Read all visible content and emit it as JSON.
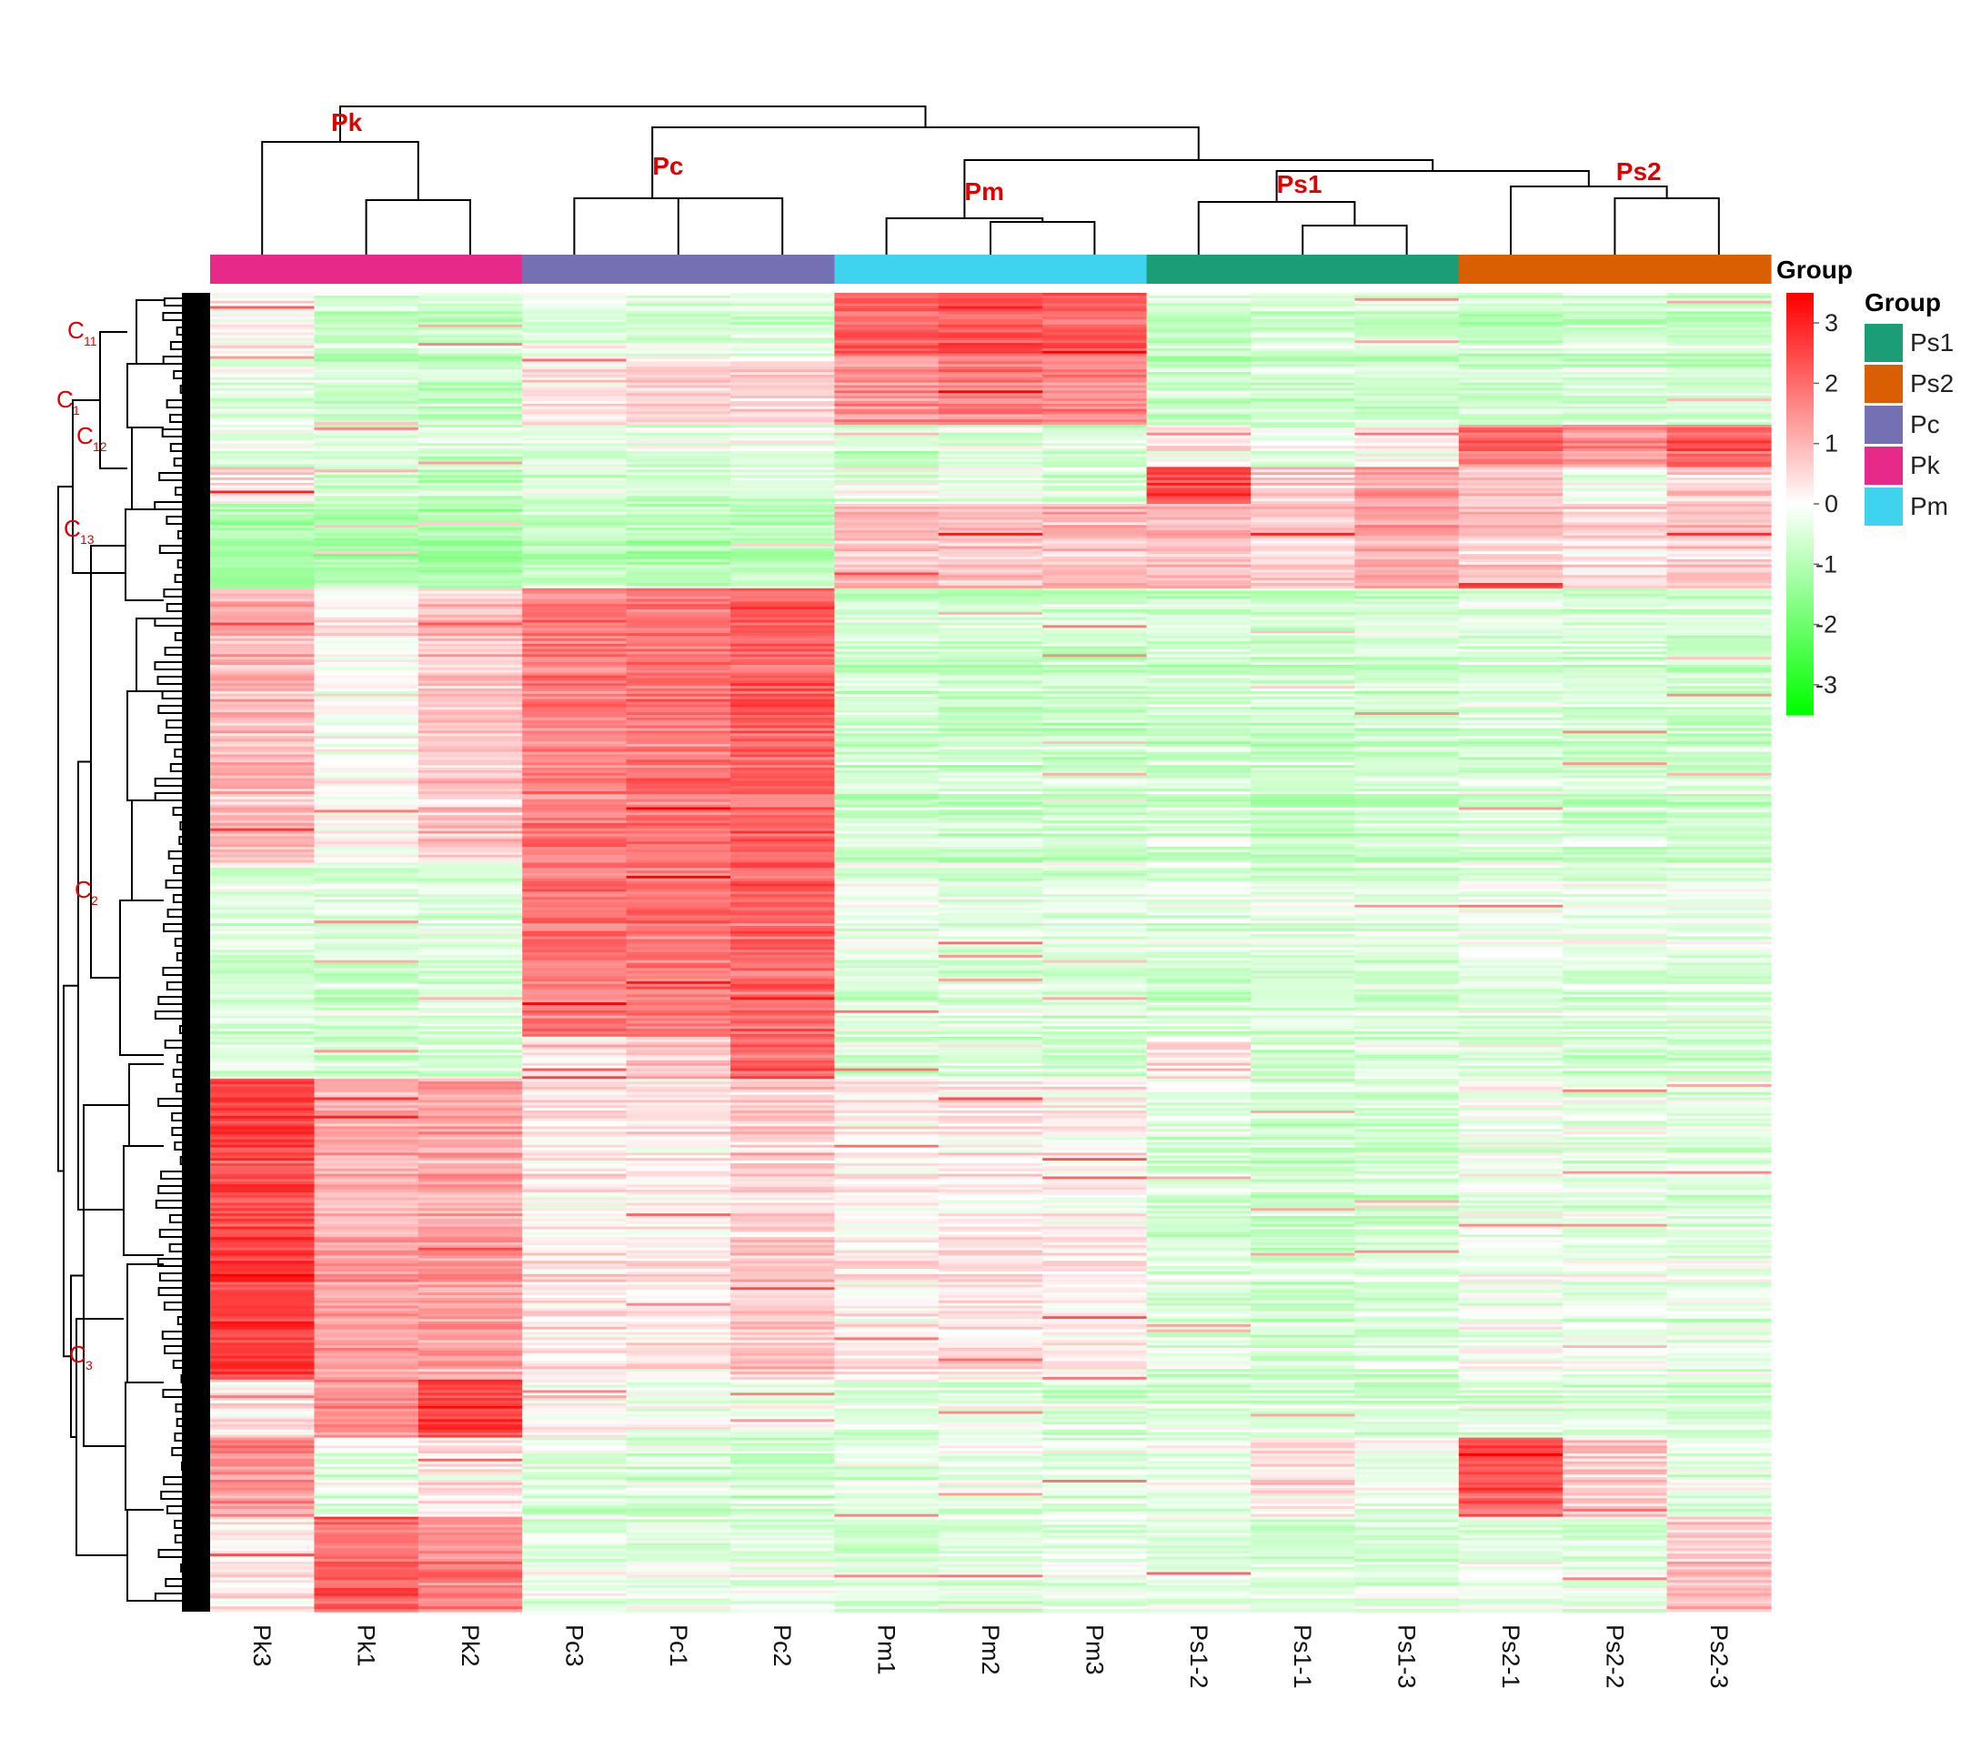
{
  "chart_data": {
    "type": "heatmap",
    "title": "",
    "column_annotation_title": "Group",
    "legend_title": "Group",
    "samples": [
      "Pk3",
      "Pk1",
      "Pk2",
      "Pc3",
      "Pc1",
      "Pc2",
      "Pm1",
      "Pm2",
      "Pm3",
      "Ps1-2",
      "Ps1-1",
      "Ps1-3",
      "Ps2-1",
      "Ps2-2",
      "Ps2-3"
    ],
    "sample_groups": [
      "Pk",
      "Pk",
      "Pk",
      "Pc",
      "Pc",
      "Pc",
      "Pm",
      "Pm",
      "Pm",
      "Ps1",
      "Ps1",
      "Ps1",
      "Ps2",
      "Ps2",
      "Ps2"
    ],
    "groups": [
      {
        "name": "Ps1",
        "color": "#1b9e77"
      },
      {
        "name": "Ps2",
        "color": "#d95f02"
      },
      {
        "name": "Pc",
        "color": "#7570b3"
      },
      {
        "name": "Pk",
        "color": "#e7298a"
      },
      {
        "name": "Pm",
        "color": "#3fd3f0"
      }
    ],
    "dendrogram_labels": [
      "Pk",
      "Pc",
      "Pm",
      "Ps1",
      "Ps2"
    ],
    "row_cluster_labels": [
      {
        "main": "C",
        "sub": "11"
      },
      {
        "main": "C",
        "sub": "1"
      },
      {
        "main": "C",
        "sub": "12"
      },
      {
        "main": "C",
        "sub": "13"
      },
      {
        "main": "C",
        "sub": "2"
      },
      {
        "main": "C",
        "sub": "3"
      }
    ],
    "color_scale": {
      "low": "#00ff00",
      "mid": "#ffffff",
      "high": "#ff0000",
      "min": -3.5,
      "max": 3.5
    },
    "colorbar_ticks": [
      3,
      2,
      1,
      0,
      -1,
      -2,
      -3
    ],
    "row_blocks": [
      {
        "n": 24,
        "values": [
          0.2,
          -0.6,
          -0.6,
          -0.3,
          -0.5,
          -0.4,
          2.2,
          2.4,
          2.3,
          -0.6,
          -0.5,
          -0.5,
          -0.7,
          -0.6,
          -0.7
        ]
      },
      {
        "n": 26,
        "values": [
          -0.3,
          -0.6,
          -0.7,
          0.4,
          0.6,
          0.7,
          1.6,
          1.8,
          1.7,
          -0.7,
          -0.6,
          -0.6,
          -0.6,
          -0.5,
          -0.6
        ]
      },
      {
        "n": 16,
        "values": [
          -0.4,
          -0.5,
          -0.6,
          -0.4,
          -0.4,
          -0.3,
          -0.6,
          -0.5,
          -0.6,
          0.3,
          -0.3,
          0.2,
          1.9,
          1.5,
          2.3
        ]
      },
      {
        "n": 14,
        "values": [
          0.6,
          -0.7,
          -0.8,
          -0.4,
          -0.6,
          -0.5,
          -0.2,
          -0.2,
          -0.4,
          2.6,
          0.7,
          1.3,
          0.8,
          -0.2,
          0.6
        ]
      },
      {
        "n": 32,
        "values": [
          -1.2,
          -1.1,
          -1.3,
          -0.8,
          -1.0,
          -0.9,
          0.9,
          0.8,
          0.9,
          0.9,
          0.7,
          1.2,
          0.8,
          0.5,
          0.7
        ]
      },
      {
        "n": 104,
        "values": [
          1.0,
          0.1,
          0.8,
          1.8,
          1.9,
          2.2,
          -0.6,
          -0.7,
          -0.7,
          -0.6,
          -0.7,
          -0.6,
          -0.5,
          -0.6,
          -0.6
        ]
      },
      {
        "n": 66,
        "values": [
          -0.5,
          -0.6,
          -0.5,
          1.9,
          1.9,
          2.1,
          -0.4,
          -0.5,
          -0.5,
          -0.5,
          -0.5,
          -0.5,
          -0.3,
          -0.4,
          -0.4
        ]
      },
      {
        "n": 16,
        "values": [
          -0.3,
          -0.4,
          -0.4,
          0.5,
          0.9,
          2.3,
          -0.4,
          -0.4,
          -0.5,
          0.6,
          -0.5,
          -0.3,
          -0.3,
          -0.4,
          -0.4
        ]
      },
      {
        "n": 114,
        "values": [
          2.6,
          1.2,
          1.3,
          0.3,
          0.3,
          0.7,
          0.2,
          0.3,
          0.2,
          -0.5,
          -0.6,
          -0.6,
          -0.2,
          -0.3,
          -0.4
        ]
      },
      {
        "n": 22,
        "values": [
          0.3,
          1.5,
          2.6,
          0.1,
          -0.2,
          -0.3,
          -0.4,
          -0.4,
          -0.5,
          -0.4,
          -0.5,
          -0.5,
          -0.4,
          -0.4,
          -0.5
        ]
      },
      {
        "n": 30,
        "values": [
          1.5,
          -0.3,
          0.3,
          -0.5,
          -0.5,
          -0.6,
          -0.4,
          -0.4,
          -0.4,
          -0.3,
          0.4,
          -0.2,
          2.3,
          0.7,
          -0.3
        ]
      },
      {
        "n": 36,
        "values": [
          0.3,
          2.2,
          1.7,
          -0.3,
          -0.3,
          -0.3,
          -0.5,
          -0.4,
          -0.3,
          -0.4,
          -0.5,
          -0.4,
          -0.3,
          -0.4,
          0.8
        ]
      }
    ]
  }
}
